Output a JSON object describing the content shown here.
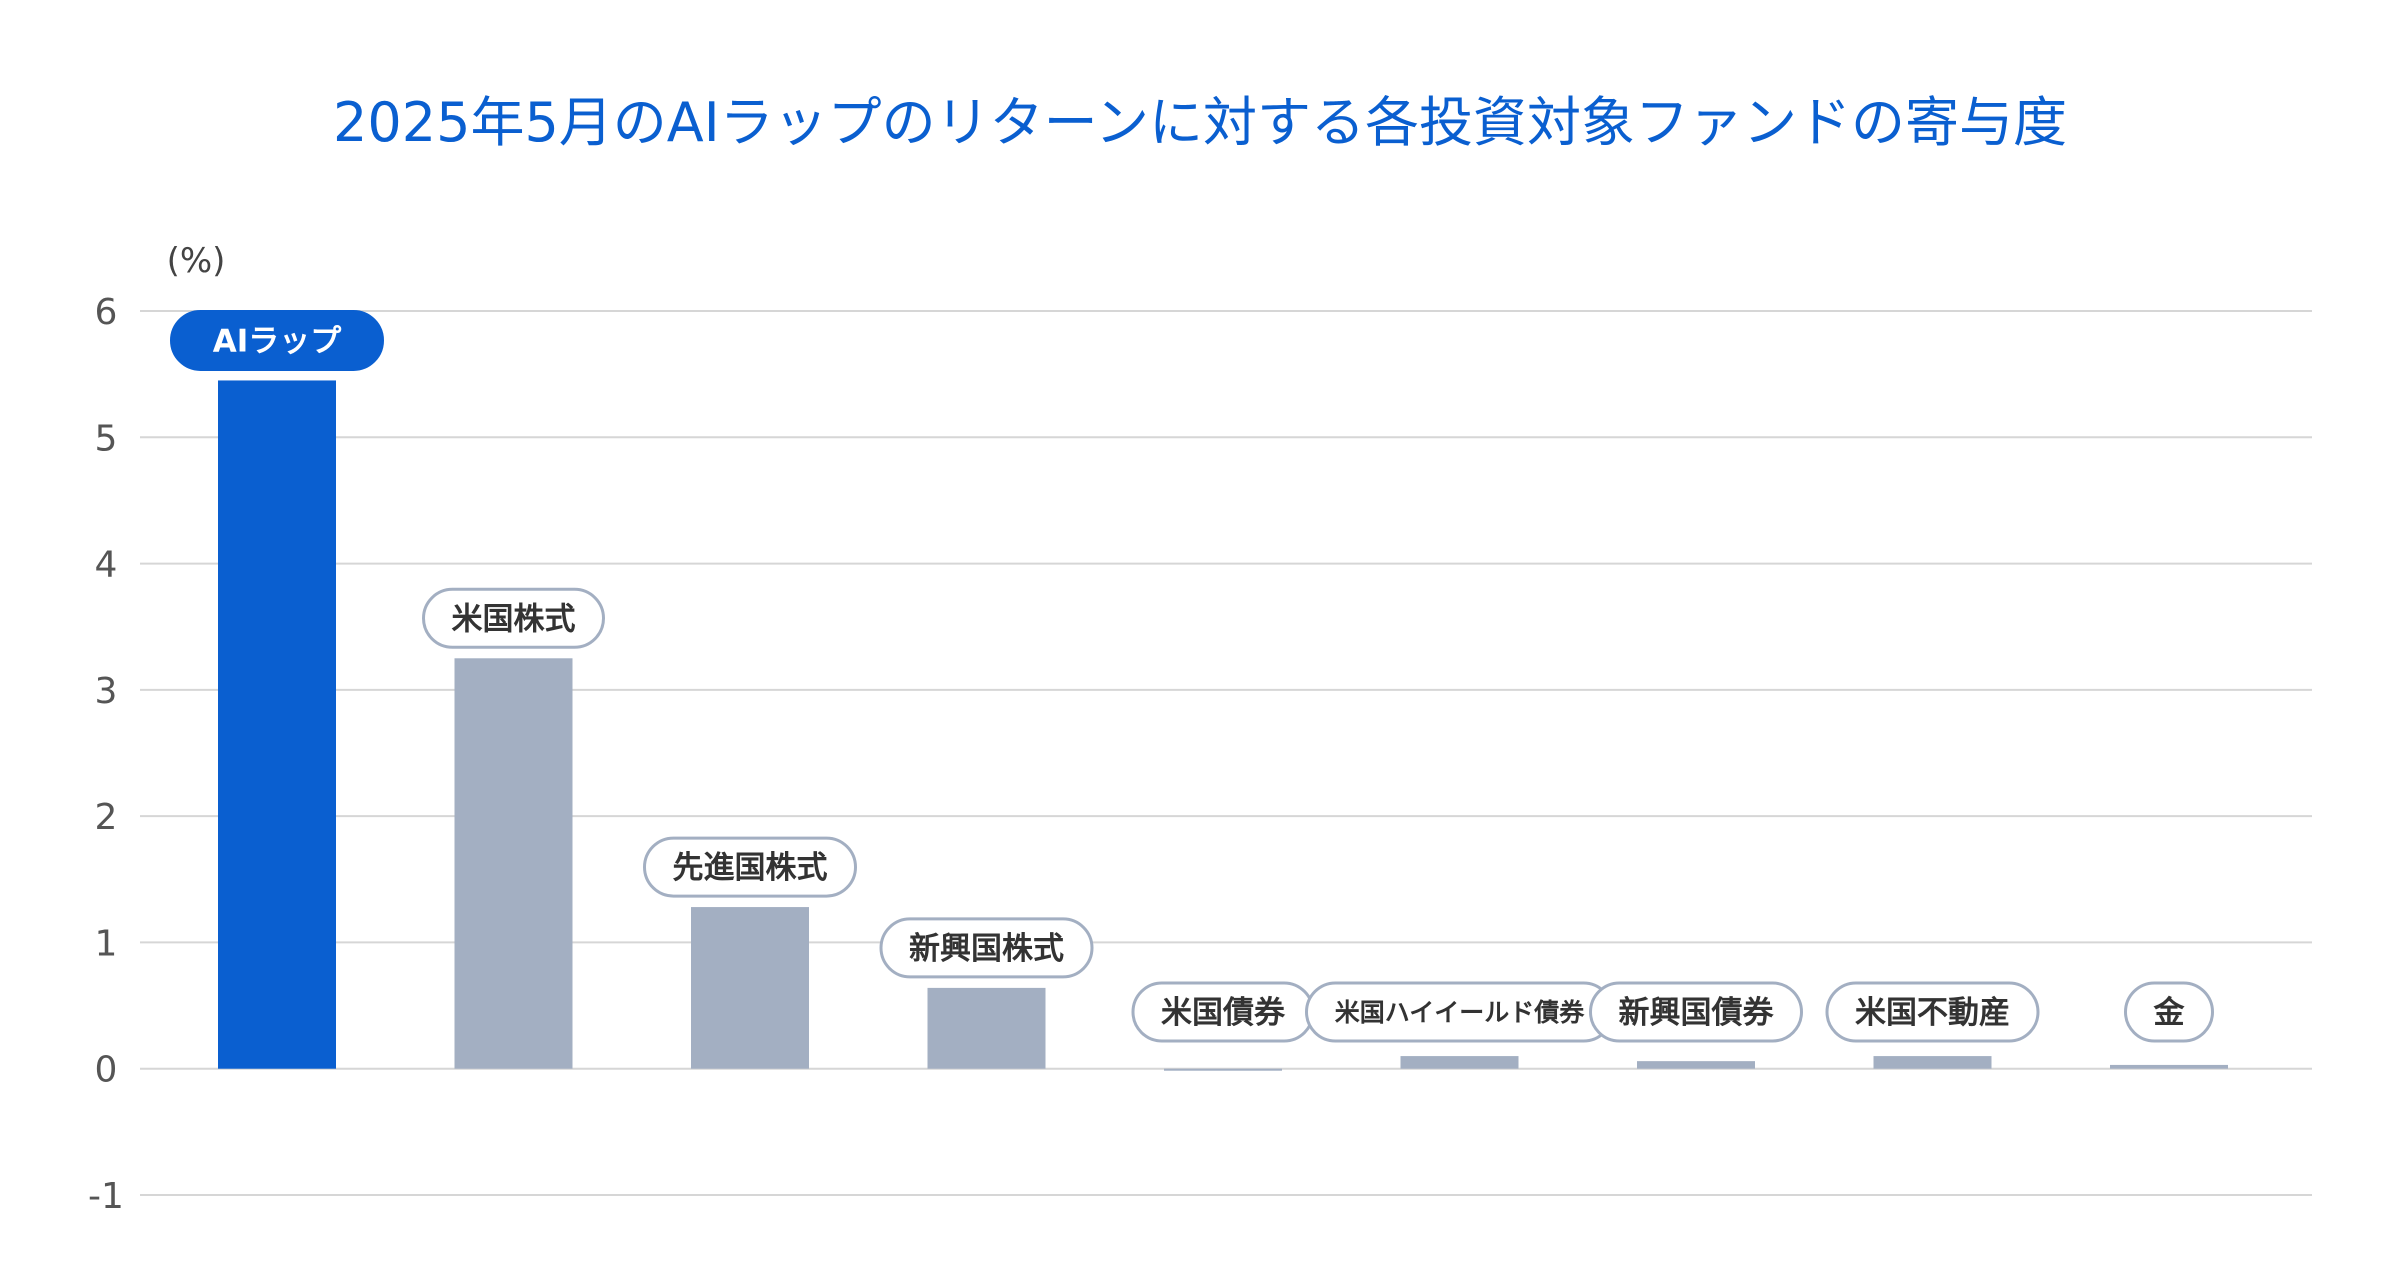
{
  "title": "2025年5月のAIラップのリターンに対する各投資対象ファンドの寄与度",
  "colors": {
    "highlight": "#0a5fd0",
    "bar": "#a3afc2",
    "grid": "#d6d6d6",
    "axis_text": "#555555",
    "label_border": "#a3afc2",
    "label_text": "#333333"
  },
  "chart_data": {
    "type": "bar",
    "unit_label": "(%)",
    "ylim": [
      -1,
      6
    ],
    "yticks": [
      -1,
      0,
      1,
      2,
      3,
      4,
      5,
      6
    ],
    "grid": true,
    "categories": [
      "AIラップ",
      "米国株式",
      "先進国株式",
      "新興国株式",
      "米国債券",
      "米国ハイイールド債券",
      "新興国債券",
      "米国不動産",
      "金"
    ],
    "values": [
      5.45,
      3.25,
      1.28,
      0.64,
      -0.01,
      0.1,
      0.06,
      0.1,
      0.03
    ],
    "highlight_index": 0
  }
}
